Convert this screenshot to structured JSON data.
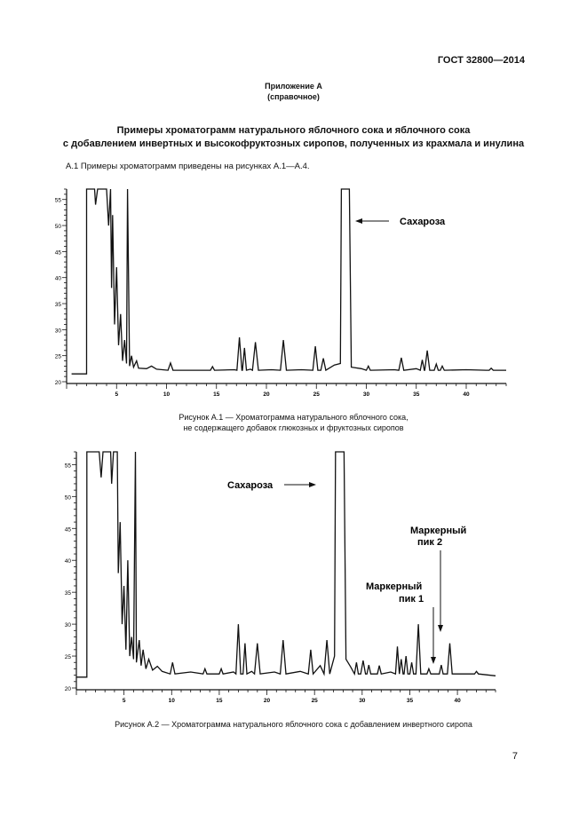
{
  "header": {
    "standard": "ГОСТ 32800—2014"
  },
  "appendix": {
    "title": "Приложение А",
    "type": "(справочное)"
  },
  "section": {
    "title_line1": "Примеры хроматограмм натурального яблочного сока и яблочного сока",
    "title_line2": "с добавлением инвертных и высокофруктозных сиропов, полученных из крахмала и инулина",
    "intro": "А.1 Примеры хроматограмм приведены на рисунках А.1—А.4."
  },
  "chart_data": [
    {
      "type": "line",
      "y_ticks": [
        20,
        25,
        30,
        35,
        40,
        45,
        50,
        55
      ],
      "x_ticks": [
        5,
        10,
        15,
        20,
        25,
        30,
        35,
        40
      ],
      "ylim": [
        20,
        57
      ],
      "xlim": [
        0,
        44
      ],
      "annotations": [
        {
          "text": "Сахароза",
          "x": 27.6
        }
      ],
      "caption_line1": "Рисунок А.1 — Хроматограмма натурального яблочного сока,",
      "caption_line2": "не содержащего добавок глюкозных и фруктозных сиропов"
    },
    {
      "type": "line",
      "y_ticks": [
        20,
        25,
        30,
        35,
        40,
        45,
        50,
        55
      ],
      "x_ticks": [
        5,
        10,
        15,
        20,
        25,
        30,
        35,
        40
      ],
      "ylim": [
        20,
        57
      ],
      "xlim": [
        0,
        44
      ],
      "annotations": [
        {
          "text": "Сахароза",
          "x": 27.6
        },
        {
          "text_line1": "Маркерный",
          "text_line2": "пик 1",
          "x": 38.3
        },
        {
          "text_line1": "Маркерный",
          "text_line2": "пик 2",
          "x": 39.2
        }
      ],
      "caption": "Рисунок А.2 — Хроматограмма натурального яблочного сока с добавлением инвертного сиропа"
    }
  ],
  "page_number": "7"
}
